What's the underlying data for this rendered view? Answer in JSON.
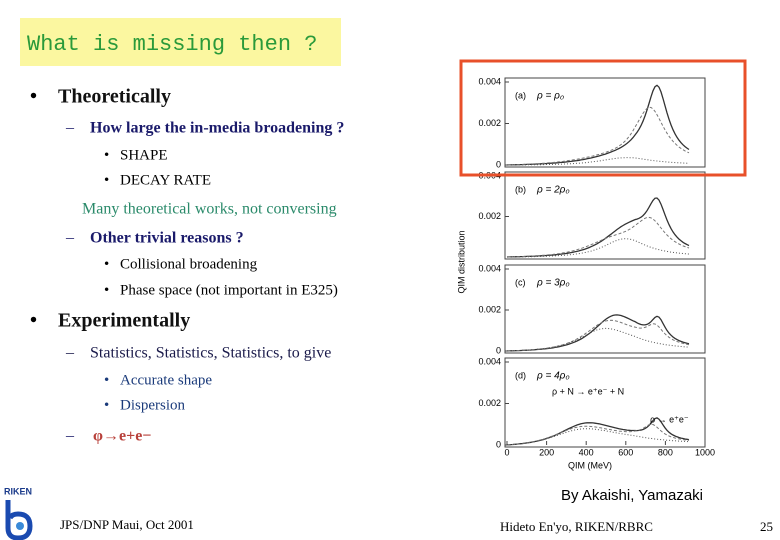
{
  "slide": {
    "title": "What is missing then ?",
    "lines": [
      "Theoretically",
      "How large the in-media broadening ?",
      "SHAPE",
      "DECAY  RATE",
      "Many theoretical works, not conversing",
      "Other trivial reasons ?",
      "Collisional  broadening",
      "Phase space (not important in E325)",
      "Experimentally",
      "Statistics, Statistics, Statistics, to give",
      "Accurate shape",
      "Dispersion",
      "φ→e+e−"
    ],
    "credit": "By Akaishi, Yamazaki",
    "footer_left": "JPS/DNP Maui, Oct 2001",
    "footer_center": "Hideto En'yo, RIKEN/RBRC",
    "page_number": "25",
    "logo_text": "RIKEN"
  },
  "figure": {
    "y_label": "QIM distribution",
    "x_label": "QIM (MeV)",
    "x_ticks": [
      "0",
      "200",
      "400",
      "600",
      "800",
      "1000"
    ],
    "panels": [
      {
        "tag": "(a)",
        "label": "ρ = ρ₀",
        "y_ticks": [
          "0.004",
          "0.002",
          "0"
        ]
      },
      {
        "tag": "(b)",
        "label": "ρ = 2ρ₀",
        "y_ticks": [
          "0.004",
          "0.002"
        ]
      },
      {
        "tag": "(c)",
        "label": "ρ = 3ρ₀",
        "y_ticks": [
          "0.004",
          "0.002",
          "0"
        ]
      },
      {
        "tag": "(d)",
        "label": "ρ = 4ρ₀",
        "y_ticks": [
          "0.004",
          "0.002",
          "0"
        ]
      }
    ],
    "annotations": [
      "ρ + N → e⁺e⁻ + N",
      "ρ → e⁺e⁻"
    ]
  }
}
